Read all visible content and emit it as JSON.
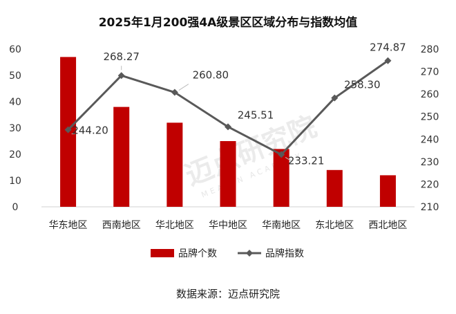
{
  "chart_data": {
    "type": "bar",
    "title": "2025年1月200强4A级景区区域分布与指数均值",
    "categories": [
      "华东地区",
      "西南地区",
      "华北地区",
      "华中地区",
      "华南地区",
      "东北地区",
      "西北地区"
    ],
    "series": [
      {
        "name": "品牌个数",
        "type": "bar",
        "axis": "left",
        "color": "#c00000",
        "values": [
          57,
          38,
          32,
          25,
          22,
          14,
          12
        ]
      },
      {
        "name": "品牌指数",
        "type": "line",
        "axis": "right",
        "color": "#595959",
        "values": [
          244.2,
          268.27,
          260.8,
          245.51,
          233.21,
          258.3,
          274.87
        ],
        "labels": [
          "244.20",
          "268.27",
          "260.80",
          "245.51",
          "233.21",
          "258.30",
          "274.87"
        ]
      }
    ],
    "y_left": {
      "min": 0,
      "max": 60,
      "ticks": [
        "0",
        "10",
        "20",
        "30",
        "40",
        "50",
        "60"
      ]
    },
    "y_right": {
      "min": 210,
      "max": 280,
      "ticks": [
        "210",
        "220",
        "230",
        "240",
        "250",
        "260",
        "270",
        "280"
      ]
    },
    "legend": {
      "placement": "bottom",
      "items": [
        "品牌个数",
        "品牌指数"
      ]
    },
    "grid": false
  },
  "source_text": "数据来源：迈点研究院",
  "watermark": {
    "text": "迈点研究院",
    "sub": "MEADIN ACADEMY"
  }
}
